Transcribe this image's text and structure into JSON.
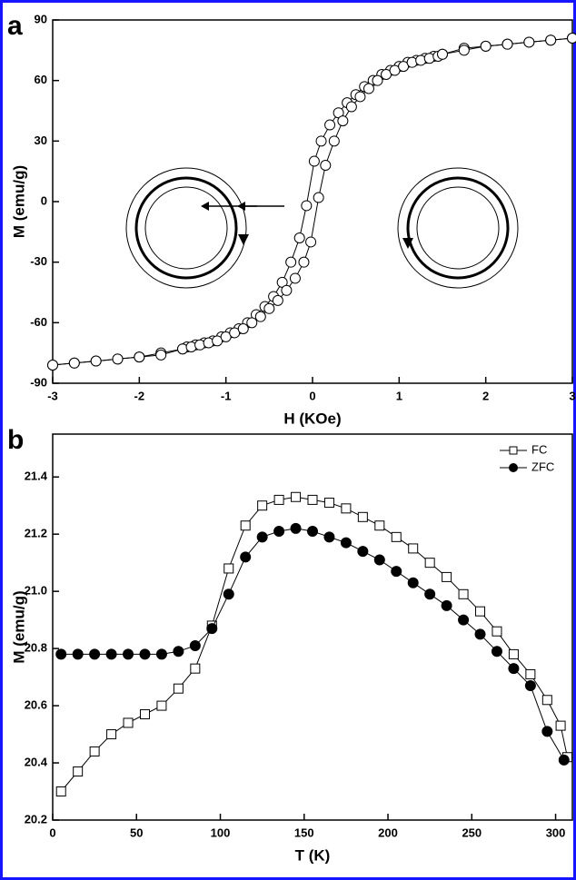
{
  "chart_data": [
    {
      "type": "line",
      "panel_label": "a",
      "xlabel": "H (KOe)",
      "ylabel": "M (emu/g)",
      "xlim": [
        -3,
        3
      ],
      "xticks": [
        -3,
        -2,
        -1,
        0,
        1,
        2,
        3
      ],
      "ylim": [
        -90,
        90
      ],
      "yticks": [
        -90,
        -60,
        -30,
        0,
        30,
        60,
        90
      ],
      "series": [
        {
          "color": "#000000",
          "marker": "circle",
          "filled": false,
          "x": [
            3,
            2.75,
            2.5,
            2.25,
            2,
            1.75,
            1.5,
            1.4,
            1.3,
            1.2,
            1.1,
            1,
            0.9,
            0.8,
            0.7,
            0.6,
            0.5,
            0.4,
            0.3,
            0.2,
            0.1,
            0.02,
            -0.07,
            -0.15,
            -0.25,
            -0.35,
            -0.45,
            -0.55,
            -0.65,
            -0.75,
            -0.85,
            -0.95,
            -1.05,
            -1.15,
            -1.25,
            -1.35,
            -1.45,
            -1.5,
            -1.75,
            -2,
            -2.25,
            -2.5,
            -2.75,
            -3
          ],
          "values": [
            81,
            80,
            79,
            78,
            77,
            76,
            73,
            72,
            71,
            70,
            69,
            67,
            65,
            63,
            60,
            57,
            53,
            49,
            44,
            38,
            30,
            20,
            -2,
            -18,
            -30,
            -40,
            -47,
            -52,
            -56,
            -60,
            -63,
            -65,
            -67,
            -69,
            -70,
            -71,
            -72,
            -73,
            -75,
            -77,
            -78,
            -79,
            -80,
            -81
          ]
        },
        {
          "color": "#000000",
          "marker": "circle",
          "filled": false,
          "x": [
            -3,
            -2.75,
            -2.5,
            -2.25,
            -2,
            -1.75,
            -1.5,
            -1.4,
            -1.3,
            -1.2,
            -1.1,
            -1,
            -0.9,
            -0.8,
            -0.7,
            -0.6,
            -0.5,
            -0.4,
            -0.3,
            -0.2,
            -0.1,
            -0.02,
            0.07,
            0.15,
            0.25,
            0.35,
            0.45,
            0.55,
            0.65,
            0.75,
            0.85,
            0.95,
            1.05,
            1.15,
            1.25,
            1.35,
            1.45,
            1.5,
            1.75,
            2,
            2.25,
            2.5,
            2.75,
            3
          ],
          "values": [
            -81,
            -80,
            -79,
            -78,
            -77,
            -76,
            -73,
            -72,
            -71,
            -70,
            -69,
            -67,
            -65,
            -63,
            -60,
            -57,
            -53,
            -49,
            -44,
            -38,
            -30,
            -20,
            2,
            18,
            30,
            40,
            47,
            52,
            56,
            60,
            63,
            65,
            67,
            69,
            70,
            71,
            72,
            73,
            75,
            77,
            78,
            79,
            80,
            81
          ]
        }
      ]
    },
    {
      "type": "line",
      "panel_label": "b",
      "xlabel": "T (K)",
      "ylabel": "M (emu/g)",
      "xlim": [
        0,
        310
      ],
      "xticks": [
        0,
        50,
        100,
        150,
        200,
        250,
        300
      ],
      "ylim": [
        20.2,
        21.55
      ],
      "yticks": [
        20.2,
        20.4,
        20.6,
        20.8,
        {
          "value": 21,
          "label": "21.0"
        },
        21.2,
        21.4
      ],
      "legend": "upper right",
      "series": [
        {
          "name": "FC",
          "color": "#000000",
          "marker": "square",
          "filled": false,
          "x": [
            5,
            15,
            25,
            35,
            45,
            55,
            65,
            75,
            85,
            95,
            105,
            115,
            125,
            135,
            145,
            155,
            165,
            175,
            185,
            195,
            205,
            215,
            225,
            235,
            245,
            255,
            265,
            275,
            285,
            295,
            303,
            307
          ],
          "values": [
            20.3,
            20.37,
            20.44,
            20.5,
            20.54,
            20.57,
            20.6,
            20.66,
            20.73,
            20.88,
            21.08,
            21.23,
            21.3,
            21.32,
            21.33,
            21.32,
            21.31,
            21.29,
            21.26,
            21.23,
            21.19,
            21.15,
            21.1,
            21.05,
            20.99,
            20.93,
            20.86,
            20.78,
            20.71,
            20.62,
            20.53,
            20.42
          ]
        },
        {
          "name": "ZFC",
          "color": "#000000",
          "marker": "circle",
          "filled": true,
          "x": [
            5,
            15,
            25,
            35,
            45,
            55,
            65,
            75,
            85,
            95,
            105,
            115,
            125,
            135,
            145,
            155,
            165,
            175,
            185,
            195,
            205,
            215,
            225,
            235,
            245,
            255,
            265,
            275,
            285,
            295,
            305
          ],
          "values": [
            20.78,
            20.78,
            20.78,
            20.78,
            20.78,
            20.78,
            20.78,
            20.79,
            20.81,
            20.87,
            20.99,
            21.12,
            21.19,
            21.21,
            21.22,
            21.21,
            21.19,
            21.17,
            21.14,
            21.11,
            21.07,
            21.03,
            20.99,
            20.95,
            20.9,
            20.85,
            20.79,
            20.73,
            20.67,
            20.51,
            20.41
          ]
        }
      ]
    }
  ]
}
